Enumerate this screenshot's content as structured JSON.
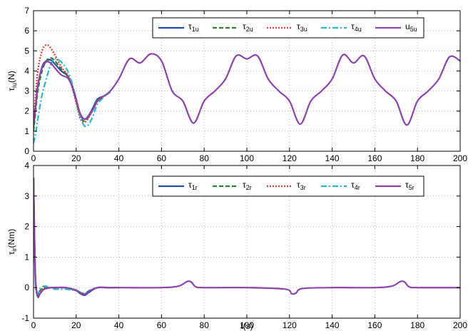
{
  "chart_data": [
    {
      "type": "line",
      "xlabel": "",
      "ylabel": {
        "main": "τ",
        "sub": "iu",
        "suffix": "(N)"
      },
      "xlim": [
        0,
        200
      ],
      "ylim": [
        0,
        7
      ],
      "xticks": [
        0,
        20,
        40,
        60,
        80,
        100,
        120,
        140,
        160,
        180,
        200
      ],
      "yticks": [
        0,
        1,
        2,
        3,
        4,
        5,
        6,
        7
      ],
      "grid": true,
      "legend_position": "top-right",
      "series": [
        {
          "name": "τ1u",
          "label_main": "τ",
          "label_sub": "1u",
          "color": "#1f4fa3",
          "dash": "solid",
          "x": [
            0,
            1,
            2,
            4,
            6,
            8,
            10,
            13,
            16,
            18,
            20,
            22,
            24,
            26,
            28,
            30,
            33,
            36
          ],
          "y": [
            1.2,
            2.2,
            3.2,
            4.2,
            4.5,
            4.55,
            4.35,
            4.0,
            3.75,
            3.3,
            2.6,
            1.8,
            1.6,
            1.8,
            2.2,
            2.6,
            2.75,
            2.95
          ]
        },
        {
          "name": "τ2u",
          "label_main": "τ",
          "label_sub": "2u",
          "color": "#2e7d32",
          "dash": "6,3",
          "x": [
            0,
            1,
            2,
            4,
            6,
            8,
            10,
            13,
            16,
            18,
            20,
            22,
            24,
            26,
            28,
            30,
            33,
            36
          ],
          "y": [
            1.0,
            2.0,
            3.0,
            4.0,
            4.5,
            4.65,
            4.5,
            4.1,
            3.75,
            3.25,
            2.5,
            1.7,
            1.5,
            1.75,
            2.15,
            2.55,
            2.75,
            2.95
          ]
        },
        {
          "name": "τ3u",
          "label_main": "τ",
          "label_sub": "3u",
          "color": "#e53935",
          "dash": "2,2",
          "x": [
            0,
            1,
            2,
            4,
            6,
            8,
            10,
            13,
            16,
            18,
            20,
            22,
            24,
            26,
            28,
            30,
            33,
            36
          ],
          "y": [
            1.5,
            2.8,
            4.0,
            5.0,
            5.3,
            5.15,
            4.8,
            4.2,
            3.8,
            3.2,
            2.4,
            1.6,
            1.45,
            1.7,
            2.1,
            2.5,
            2.75,
            2.95
          ]
        },
        {
          "name": "τ4u",
          "label_main": "τ",
          "label_sub": "4u",
          "color": "#26b8c4",
          "dash": "8,3,2,3",
          "x": [
            0,
            1,
            2,
            4,
            6,
            8,
            10,
            13,
            16,
            18,
            20,
            22,
            24,
            26,
            28,
            30,
            33,
            36
          ],
          "y": [
            0.4,
            0.9,
            1.6,
            2.8,
            3.6,
            4.3,
            4.6,
            4.45,
            4.0,
            3.4,
            2.6,
            1.7,
            1.25,
            1.35,
            1.8,
            2.35,
            2.7,
            2.95
          ]
        },
        {
          "name": "u5u",
          "label_main": "u",
          "label_sub": "5u",
          "color": "#8e44ad",
          "dash": "solid",
          "x": [
            0,
            1,
            2,
            4,
            6,
            8,
            10,
            13,
            16,
            18,
            20,
            22,
            24,
            26,
            28,
            30,
            33,
            36,
            40,
            45,
            50,
            55,
            60,
            65,
            70,
            75,
            80,
            85,
            90,
            95,
            100,
            105,
            110,
            115,
            120,
            125,
            130,
            135,
            140,
            145,
            150,
            155,
            160,
            165,
            170,
            175,
            180,
            185,
            190,
            195,
            200
          ],
          "y": [
            1.3,
            2.3,
            3.3,
            4.15,
            4.45,
            4.4,
            4.15,
            3.8,
            3.65,
            3.25,
            2.55,
            1.85,
            1.6,
            1.75,
            2.1,
            2.5,
            2.75,
            3.0,
            3.6,
            4.6,
            4.4,
            4.85,
            4.5,
            3.0,
            2.5,
            1.4,
            2.5,
            3.0,
            3.6,
            4.75,
            4.6,
            4.75,
            3.6,
            3.0,
            2.5,
            1.35,
            2.5,
            3.0,
            3.6,
            4.8,
            4.4,
            4.75,
            3.6,
            3.0,
            2.5,
            1.3,
            2.5,
            3.0,
            3.6,
            4.7,
            4.5
          ]
        }
      ]
    },
    {
      "type": "line",
      "xlabel": "t(s)",
      "ylabel": {
        "main": "τ",
        "sub": "ir",
        "suffix": "(Nm)"
      },
      "xlim": [
        0,
        200
      ],
      "ylim": [
        -1,
        4
      ],
      "xticks": [
        0,
        20,
        40,
        60,
        80,
        100,
        120,
        140,
        160,
        180,
        200
      ],
      "yticks": [
        -1,
        0,
        1,
        2,
        3,
        4
      ],
      "grid": true,
      "legend_position": "top-right",
      "series": [
        {
          "name": "τ1r",
          "label_main": "τ",
          "label_sub": "1r",
          "color": "#1f4fa3",
          "dash": "solid",
          "x": [
            0,
            0.5,
            1,
            2,
            3,
            5,
            8,
            10,
            15,
            20,
            22,
            24,
            26,
            30,
            35,
            40
          ],
          "y": [
            3.6,
            1.5,
            0.2,
            -0.3,
            -0.2,
            -0.05,
            0.0,
            0.0,
            0.0,
            -0.1,
            -0.2,
            -0.25,
            -0.15,
            0.0,
            0.0,
            0.0
          ]
        },
        {
          "name": "τ2r",
          "label_main": "τ",
          "label_sub": "2r",
          "color": "#2e7d32",
          "dash": "6,3",
          "x": [
            0,
            0.5,
            1,
            2,
            3,
            5,
            8,
            10,
            15,
            20,
            22,
            24,
            26,
            30,
            35,
            40
          ],
          "y": [
            3.6,
            1.4,
            0.15,
            -0.25,
            -0.1,
            0.0,
            0.0,
            0.0,
            0.0,
            -0.1,
            -0.15,
            -0.2,
            -0.1,
            0.0,
            0.0,
            0.0
          ]
        },
        {
          "name": "τ3r",
          "label_main": "τ",
          "label_sub": "3r",
          "color": "#e53935",
          "dash": "2,2",
          "x": [
            0,
            0.5,
            1,
            2,
            3,
            5,
            8,
            10,
            15,
            20,
            22,
            24,
            26,
            30,
            35,
            40
          ],
          "y": [
            3.6,
            1.3,
            0.1,
            -0.3,
            -0.15,
            -0.02,
            0.0,
            0.0,
            0.0,
            -0.1,
            -0.18,
            -0.22,
            -0.12,
            0.0,
            0.0,
            0.0
          ]
        },
        {
          "name": "τ4r",
          "label_main": "τ",
          "label_sub": "4r",
          "color": "#26b8c4",
          "dash": "8,3,2,3",
          "x": [
            0,
            0.5,
            1,
            2,
            3,
            5,
            8,
            10,
            15,
            20,
            22,
            24,
            26,
            30,
            35,
            40
          ],
          "y": [
            3.6,
            1.2,
            0.0,
            -0.2,
            -0.05,
            0.05,
            0.0,
            -0.05,
            -0.05,
            -0.1,
            -0.15,
            -0.2,
            -0.1,
            0.0,
            0.0,
            0.0
          ]
        },
        {
          "name": "τ5r",
          "label_main": "τ",
          "label_sub": "5r",
          "color": "#8e44ad",
          "dash": "solid",
          "x": [
            0,
            0.5,
            1,
            2,
            3,
            5,
            8,
            10,
            15,
            20,
            22,
            24,
            26,
            30,
            35,
            40,
            60,
            68,
            72,
            74,
            76,
            80,
            100,
            118,
            121,
            123,
            126,
            140,
            160,
            168,
            172,
            174,
            176,
            180,
            200
          ],
          "y": [
            3.6,
            1.45,
            0.15,
            -0.3,
            -0.2,
            -0.05,
            0.0,
            0.0,
            0.0,
            -0.08,
            -0.18,
            -0.22,
            -0.12,
            0.0,
            0.0,
            0.0,
            0.0,
            0.05,
            0.2,
            0.18,
            0.03,
            0.0,
            0.0,
            -0.05,
            -0.2,
            -0.18,
            -0.03,
            0.0,
            0.0,
            0.05,
            0.2,
            0.18,
            0.03,
            0.0,
            0.0
          ]
        }
      ]
    }
  ]
}
